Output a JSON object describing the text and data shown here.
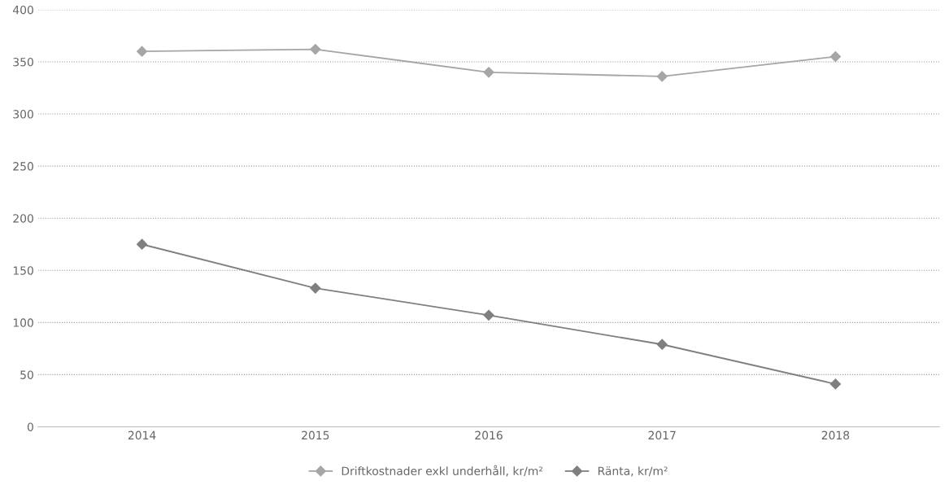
{
  "chart_data": {
    "type": "line",
    "categories": [
      "2014",
      "2015",
      "2016",
      "2017",
      "2018"
    ],
    "series": [
      {
        "name": "Driftkostnader exkl underhåll, kr/m²",
        "color": "#a6a6a6",
        "values": [
          360,
          362,
          340,
          336,
          355
        ]
      },
      {
        "name": "Ränta, kr/m²",
        "color": "#7f7f7f",
        "values": [
          175,
          133,
          107,
          79,
          41
        ]
      }
    ],
    "ylim": [
      0,
      400
    ],
    "yticks": [
      0,
      50,
      100,
      150,
      200,
      250,
      300,
      350,
      400
    ],
    "grid": "y",
    "legend": "bottom",
    "marker": "diamond",
    "line_style": "solid"
  }
}
